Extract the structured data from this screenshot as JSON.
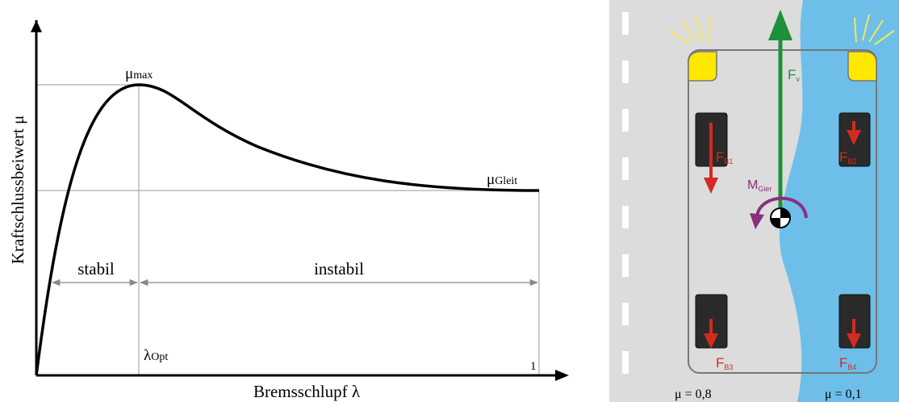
{
  "graph": {
    "y_axis_label": "Kraftschlussbeiwert μ",
    "x_axis_label": "Bremsschlupf λ",
    "mu_max": {
      "symbol": "μ",
      "subscript": "max"
    },
    "mu_gleit": {
      "symbol": "μ",
      "subscript": "Gleit"
    },
    "lambda_opt": {
      "symbol": "λ",
      "subscript": "Opt"
    },
    "x_end_label": "1",
    "regions": [
      "stabil",
      "instabil"
    ]
  },
  "vehicle": {
    "forward_force": {
      "symbol": "F",
      "subscript": "v"
    },
    "brake_forces": [
      {
        "symbol": "F",
        "subscript": "B1"
      },
      {
        "symbol": "F",
        "subscript": "B2"
      },
      {
        "symbol": "F",
        "subscript": "B3"
      },
      {
        "symbol": "F",
        "subscript": "B4"
      }
    ],
    "yaw_moment": {
      "symbol": "M",
      "subscript": "Gier"
    },
    "friction_left": "μ = 0,8",
    "friction_right": "μ = 0,1"
  }
}
